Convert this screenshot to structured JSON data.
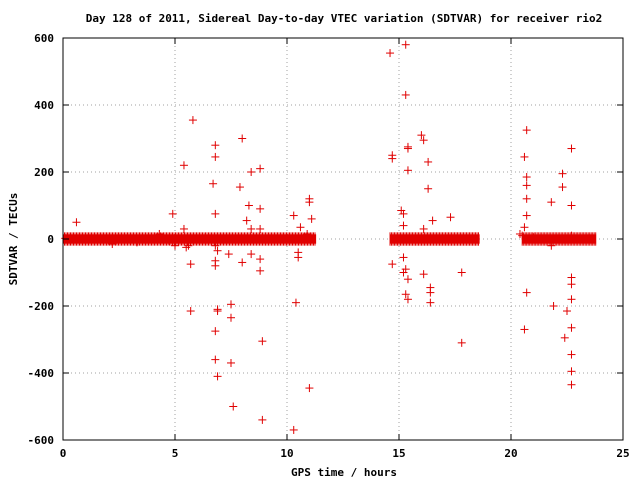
{
  "chart_data": {
    "type": "scatter",
    "title": "Day 128 of 2011, Sidereal Day-to-day VTEC variation (SDTVAR) for receiver rio2",
    "xlabel": "GPS time / hours",
    "ylabel": "SDTVAR / TECUs",
    "xlim": [
      0,
      25
    ],
    "ylim": [
      -600,
      600
    ],
    "x_ticks": [
      0,
      5,
      10,
      15,
      20,
      25
    ],
    "y_ticks": [
      -600,
      -400,
      -200,
      0,
      200,
      400,
      600
    ],
    "x_tick_labels": [
      "0",
      "5",
      "10",
      "15",
      "20",
      "25"
    ],
    "y_tick_labels": [
      "-600",
      "-400",
      "-200",
      "0",
      "200",
      "400",
      "600"
    ],
    "grid": true,
    "marker": "+",
    "color": "#e00000",
    "dense_bands": [
      {
        "x_start": 0.0,
        "x_end": 11.3,
        "y_min": -5,
        "y_max": 5
      },
      {
        "x_start": 14.6,
        "x_end": 18.6,
        "y_min": -5,
        "y_max": 5
      },
      {
        "x_start": 20.5,
        "x_end": 23.8,
        "y_min": -5,
        "y_max": 5
      }
    ],
    "points": [
      [
        0.1,
        2
      ],
      [
        0.6,
        50
      ],
      [
        2.2,
        -15
      ],
      [
        3.3,
        -10
      ],
      [
        4.3,
        15
      ],
      [
        4.7,
        -5
      ],
      [
        4.9,
        75
      ],
      [
        5.0,
        -20
      ],
      [
        5.4,
        220
      ],
      [
        5.4,
        30
      ],
      [
        5.5,
        -25
      ],
      [
        5.6,
        -20
      ],
      [
        5.7,
        -75
      ],
      [
        5.7,
        -215
      ],
      [
        5.8,
        355
      ],
      [
        6.3,
        5
      ],
      [
        6.8,
        280
      ],
      [
        6.8,
        245
      ],
      [
        6.7,
        165
      ],
      [
        6.8,
        75
      ],
      [
        6.8,
        -20
      ],
      [
        6.9,
        -35
      ],
      [
        6.8,
        -65
      ],
      [
        6.8,
        -80
      ],
      [
        6.9,
        -210
      ],
      [
        6.9,
        -215
      ],
      [
        6.8,
        -275
      ],
      [
        6.8,
        -360
      ],
      [
        6.9,
        -410
      ],
      [
        7.4,
        -45
      ],
      [
        7.5,
        -195
      ],
      [
        7.5,
        -235
      ],
      [
        7.5,
        -370
      ],
      [
        7.6,
        -500
      ],
      [
        7.9,
        155
      ],
      [
        8.0,
        300
      ],
      [
        8.0,
        -70
      ],
      [
        8.2,
        55
      ],
      [
        8.3,
        100
      ],
      [
        8.4,
        30
      ],
      [
        8.4,
        200
      ],
      [
        8.4,
        -45
      ],
      [
        8.8,
        210
      ],
      [
        8.8,
        90
      ],
      [
        8.8,
        30
      ],
      [
        8.8,
        -60
      ],
      [
        8.8,
        -95
      ],
      [
        8.9,
        -305
      ],
      [
        8.9,
        -540
      ],
      [
        10.3,
        -570
      ],
      [
        10.3,
        70
      ],
      [
        10.4,
        -190
      ],
      [
        10.5,
        -40
      ],
      [
        10.5,
        -55
      ],
      [
        10.6,
        35
      ],
      [
        10.9,
        15
      ],
      [
        11.0,
        120
      ],
      [
        11.0,
        110
      ],
      [
        11.1,
        60
      ],
      [
        11.0,
        -445
      ],
      [
        14.6,
        555
      ],
      [
        14.7,
        250
      ],
      [
        14.7,
        240
      ],
      [
        14.7,
        -75
      ],
      [
        15.1,
        85
      ],
      [
        15.2,
        75
      ],
      [
        15.2,
        40
      ],
      [
        15.2,
        -55
      ],
      [
        15.2,
        -100
      ],
      [
        15.3,
        580
      ],
      [
        15.3,
        430
      ],
      [
        15.4,
        275
      ],
      [
        15.4,
        270
      ],
      [
        15.4,
        205
      ],
      [
        15.3,
        -90
      ],
      [
        15.4,
        -120
      ],
      [
        15.3,
        -165
      ],
      [
        15.4,
        -180
      ],
      [
        16.0,
        310
      ],
      [
        16.1,
        295
      ],
      [
        16.1,
        30
      ],
      [
        16.1,
        -105
      ],
      [
        16.3,
        230
      ],
      [
        16.3,
        150
      ],
      [
        16.4,
        -145
      ],
      [
        16.4,
        -160
      ],
      [
        16.4,
        -190
      ],
      [
        16.5,
        55
      ],
      [
        17.3,
        65
      ],
      [
        17.8,
        -100
      ],
      [
        17.8,
        -310
      ],
      [
        20.4,
        15
      ],
      [
        20.5,
        10
      ],
      [
        20.6,
        245
      ],
      [
        20.7,
        325
      ],
      [
        20.7,
        185
      ],
      [
        20.7,
        160
      ],
      [
        20.7,
        120
      ],
      [
        20.7,
        70
      ],
      [
        20.6,
        35
      ],
      [
        20.7,
        -160
      ],
      [
        20.6,
        -270
      ],
      [
        21.0,
        5
      ],
      [
        21.8,
        110
      ],
      [
        21.8,
        -20
      ],
      [
        21.9,
        -200
      ],
      [
        22.3,
        195
      ],
      [
        22.3,
        155
      ],
      [
        22.5,
        -215
      ],
      [
        22.4,
        -295
      ],
      [
        22.7,
        270
      ],
      [
        22.7,
        100
      ],
      [
        22.7,
        10
      ],
      [
        22.7,
        -115
      ],
      [
        22.7,
        -135
      ],
      [
        22.7,
        -180
      ],
      [
        22.7,
        -265
      ],
      [
        22.7,
        -345
      ],
      [
        22.7,
        -395
      ],
      [
        22.7,
        -435
      ],
      [
        23.5,
        2
      ]
    ]
  }
}
